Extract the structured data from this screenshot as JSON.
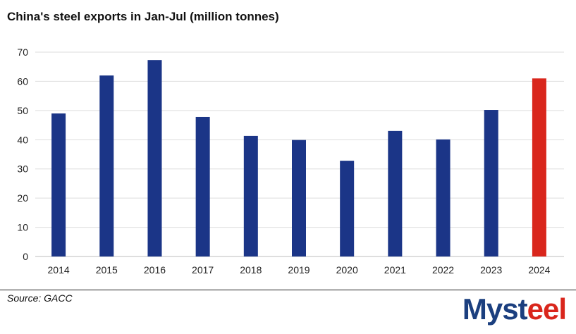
{
  "chart_data": {
    "type": "bar",
    "title": "China's steel exports in Jan-Jul (million tonnes)",
    "categories": [
      "2014",
      "2015",
      "2016",
      "2017",
      "2018",
      "2019",
      "2020",
      "2021",
      "2022",
      "2023",
      "2024"
    ],
    "values": [
      49,
      62,
      67.3,
      47.8,
      41.3,
      39.9,
      32.8,
      43,
      40.1,
      50.2,
      61
    ],
    "ylim": [
      0,
      70
    ],
    "yticks": [
      0,
      10,
      20,
      30,
      40,
      50,
      60,
      70
    ],
    "grid": true,
    "colors": {
      "default": "#1b3587",
      "highlight": "#d9261c",
      "grid": "#dedede"
    },
    "highlight_category": "2024",
    "xlabel": "",
    "ylabel": ""
  },
  "footer": {
    "source": "Source: GACC",
    "brand": "Mysteel"
  }
}
